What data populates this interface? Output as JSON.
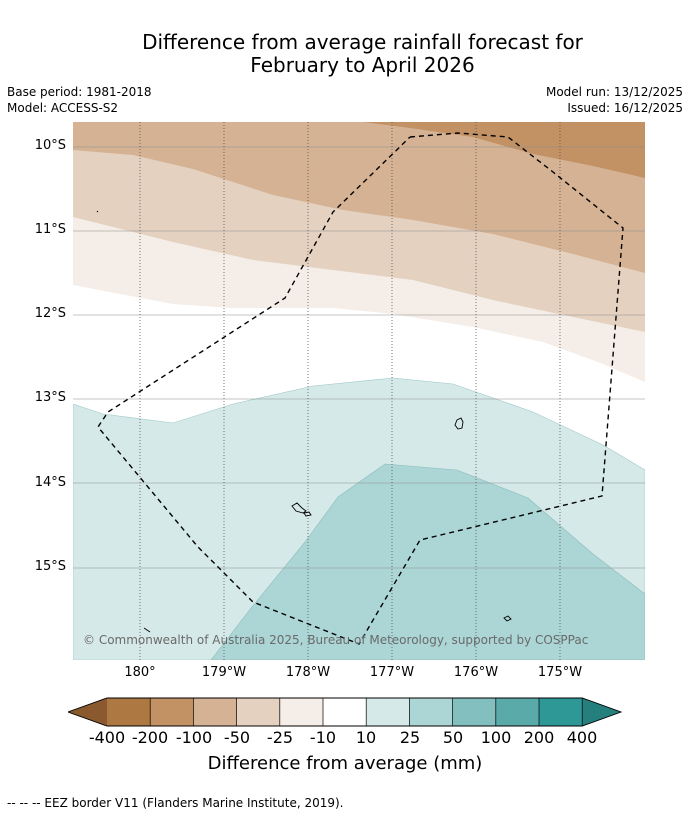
{
  "title_line1": "Difference from average rainfall forecast for",
  "title_line2": "February to April 2026",
  "base_period": "Base period: 1981-2018",
  "model": "Model: ACCESS-S2",
  "model_run": "Model run: 13/12/2025",
  "issued": "Issued: 16/12/2025",
  "lat_labels": [
    "10°S",
    "11°S",
    "12°S",
    "13°S",
    "14°S",
    "15°S"
  ],
  "lon_labels": [
    "180°",
    "179°W",
    "178°W",
    "177°W",
    "176°W",
    "175°W"
  ],
  "credit": "© Commonwealth of Australia 2025, Bureau of Meteorology, supported by COSPPac",
  "colorbar": {
    "labels": [
      "-400",
      "-200",
      "-100",
      "-50",
      "-25",
      "-10",
      "10",
      "25",
      "50",
      "100",
      "200",
      "400"
    ],
    "colors": [
      "#8a5a2e",
      "#ad7842",
      "#c29164",
      "#d4b293",
      "#e4d1c0",
      "#f5ede7",
      "#ffffff",
      "#d5e9e8",
      "#acd5d5",
      "#84bfbf",
      "#5aaaa9",
      "#2e9896",
      "#257f7d"
    ],
    "title": "Difference from average (mm)"
  },
  "footer": "--  --  -- EEZ border V11 (Flanders Marine Institute, 2019)."
}
